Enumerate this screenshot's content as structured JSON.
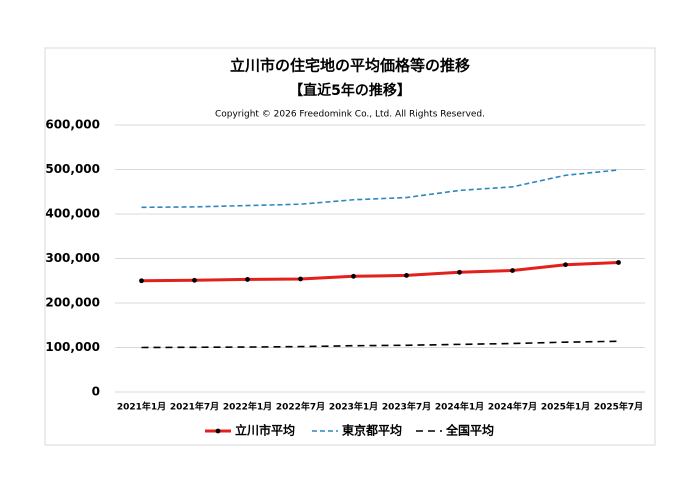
{
  "chart_data": {
    "type": "line",
    "title": "立川市の住宅地の平均価格等の推移",
    "subtitle": "【直近5年の推移】",
    "copyright": "Copyright © 2026 Freedomink Co., Ltd. All Rights Reserved.",
    "categories": [
      "2021年1月",
      "2021年7月",
      "2022年1月",
      "2022年7月",
      "2023年1月",
      "2023年7月",
      "2024年1月",
      "2024年7月",
      "2025年1月",
      "2025年7月"
    ],
    "series": [
      {
        "name": "立川市平均",
        "color": "#e3201b",
        "dash": "none",
        "width": 3,
        "marker": true,
        "values": [
          250000,
          251000,
          253000,
          254000,
          260000,
          262000,
          269000,
          273000,
          286000,
          291000
        ]
      },
      {
        "name": "東京都平均",
        "color": "#2e86c1",
        "dash": "5,3",
        "width": 1.6,
        "marker": false,
        "values": [
          415000,
          416000,
          419000,
          422000,
          432000,
          437000,
          453000,
          461000,
          487000,
          499000
        ]
      },
      {
        "name": "全国平均",
        "color": "#000000",
        "dash": "7,5",
        "width": 1.6,
        "marker": false,
        "values": [
          100000,
          100500,
          101000,
          102000,
          104000,
          105000,
          107000,
          109000,
          112000,
          114000
        ]
      }
    ],
    "ylim": [
      0,
      600000
    ],
    "yticks": [
      0,
      {
        "value": 100000,
        "label": "100,000"
      },
      {
        "value": 200000,
        "label": "200,000"
      },
      {
        "value": 300000,
        "label": "300,000"
      },
      {
        "value": 400000,
        "label": "400,000"
      },
      {
        "value": 500000,
        "label": "500,000"
      },
      {
        "value": 600000,
        "label": "600,000"
      }
    ],
    "grid": true,
    "legend": "bottom"
  }
}
